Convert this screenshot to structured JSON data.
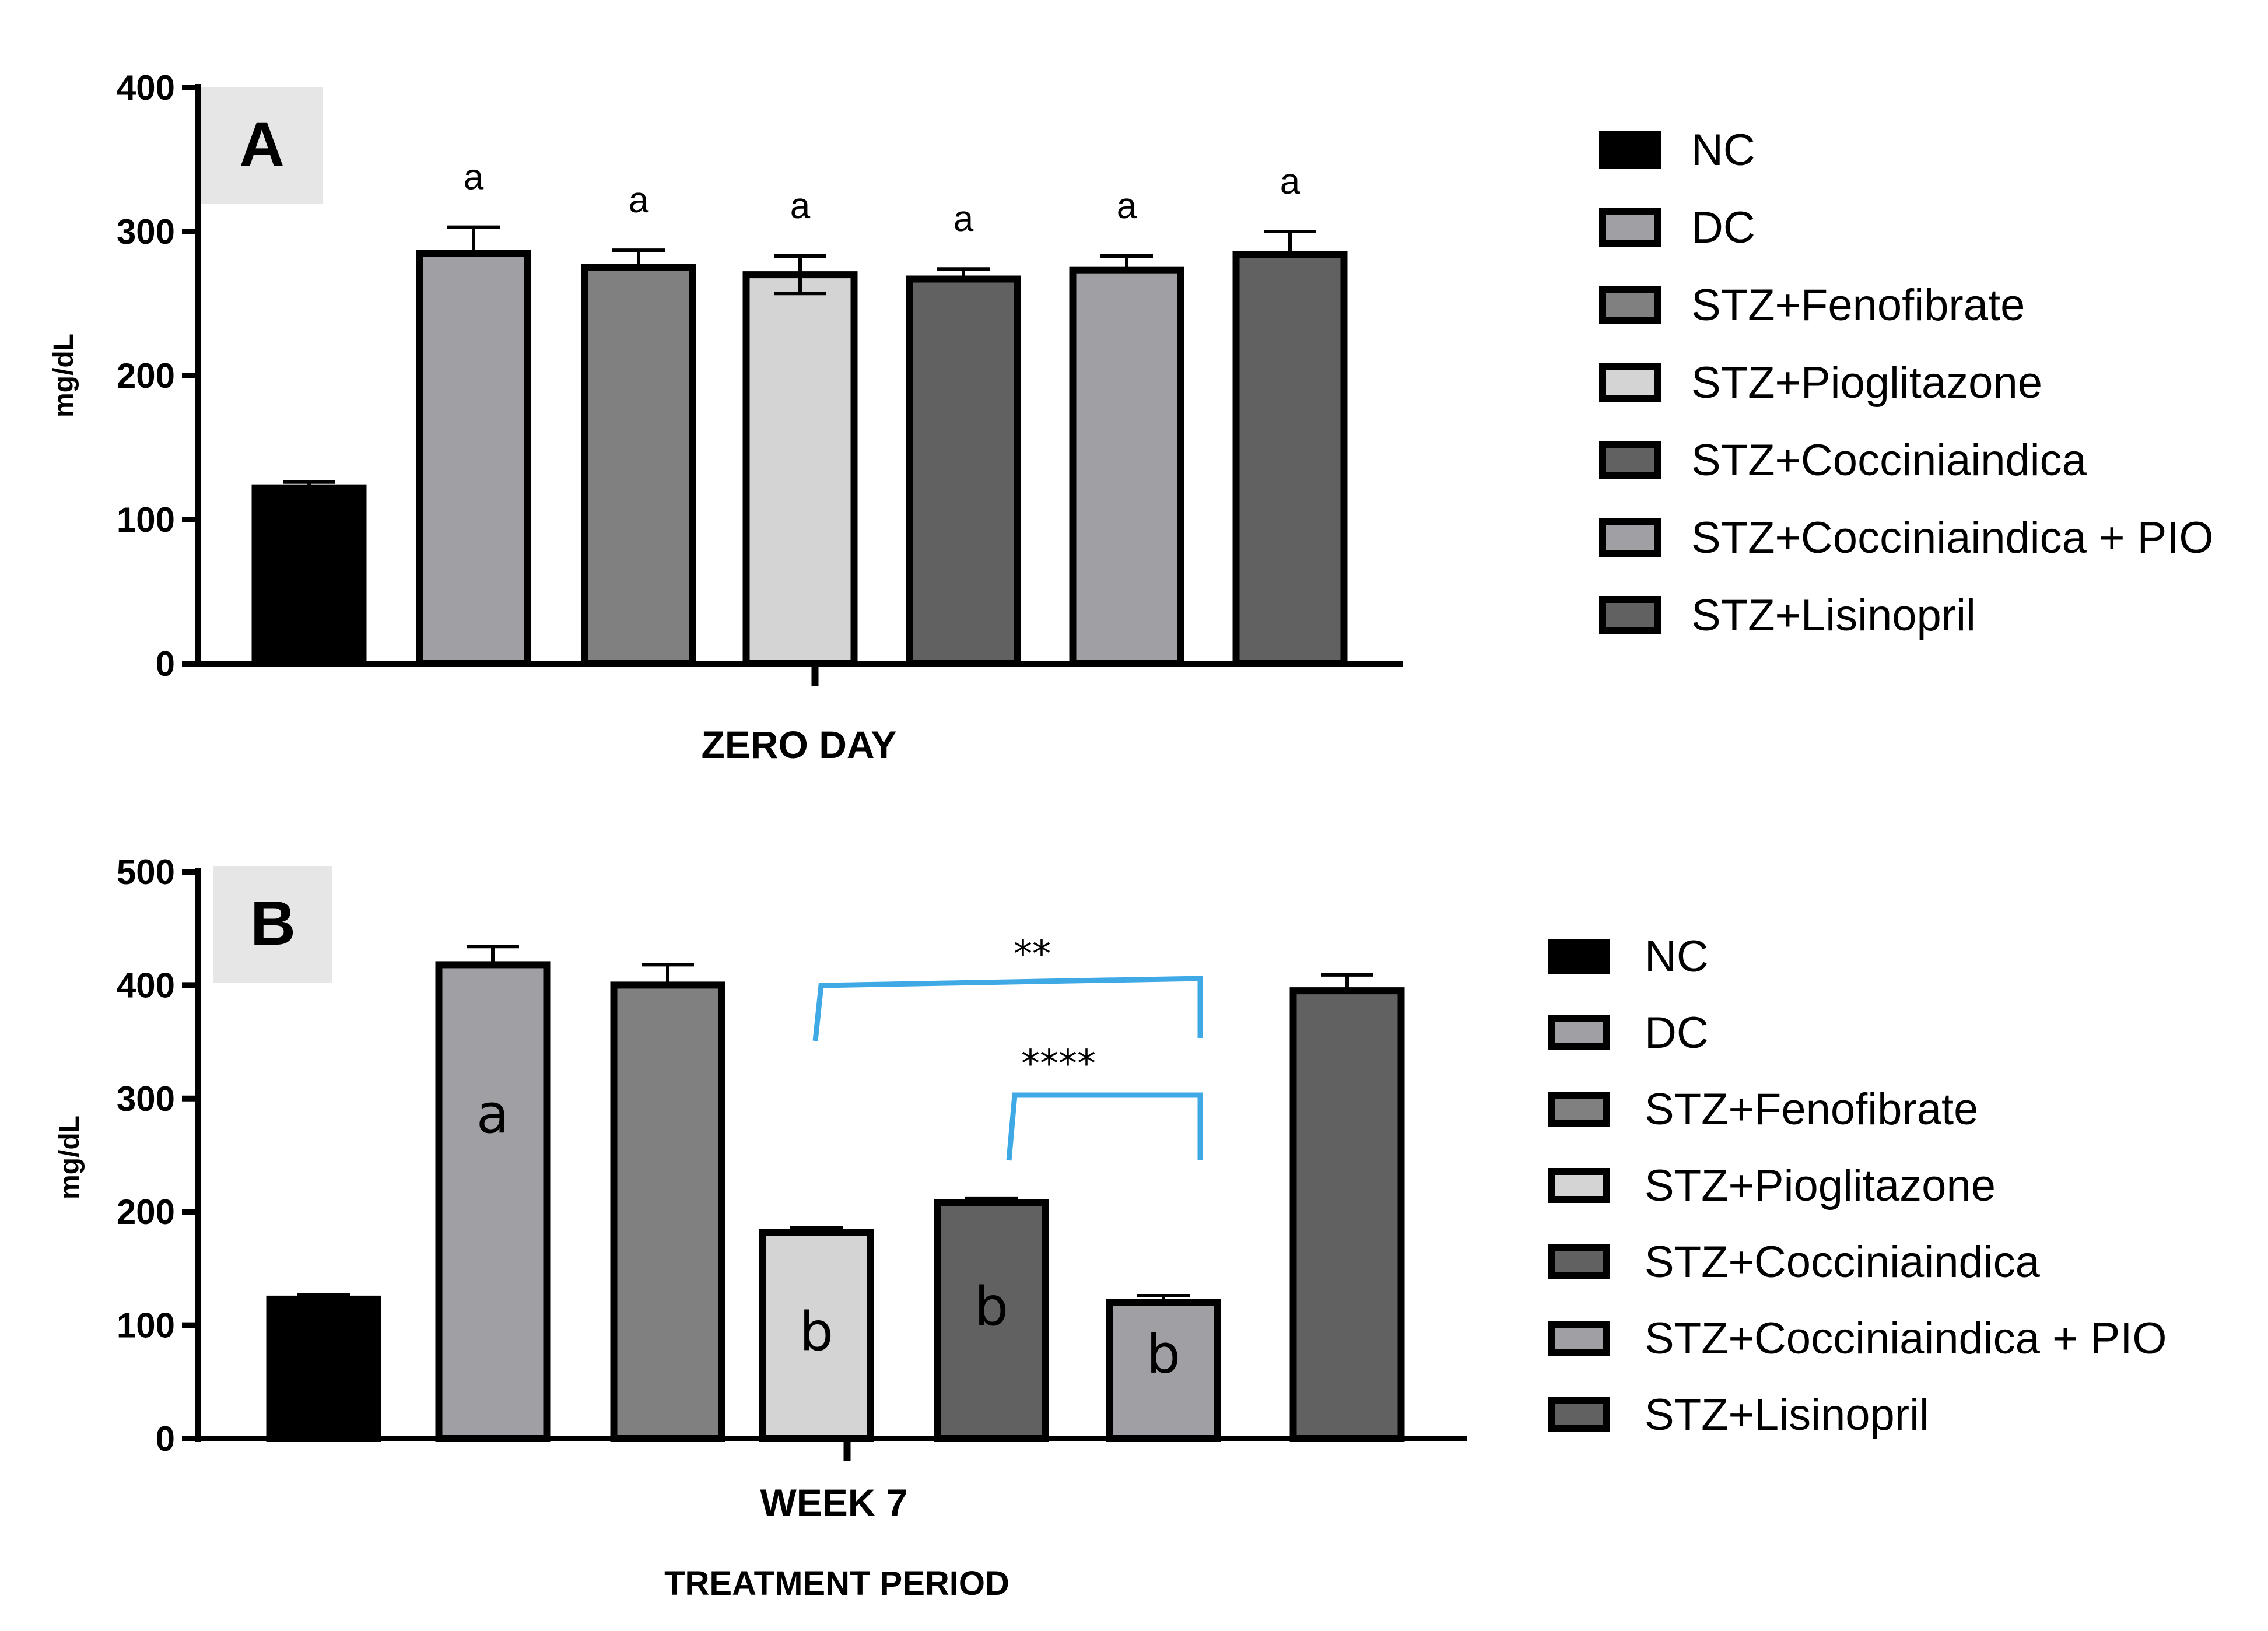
{
  "chart_data": [
    {
      "type": "bar",
      "panel_label": "A",
      "title": "",
      "xlabel": "ZERO DAY",
      "ylabel": "mg/dL",
      "ylim": [
        0,
        400
      ],
      "yticks": [
        "0",
        "100",
        "200",
        "300",
        "400"
      ],
      "categories": [
        "NC",
        "DC",
        "STZ+Fenofibrate",
        "STZ+Pioglitazone",
        "STZ+Cocciniaindica",
        "STZ+Cocciniaindica + PIO",
        "STZ+Lisinopril"
      ],
      "values": [
        122,
        285,
        275,
        270,
        267,
        273,
        284
      ],
      "errors": [
        4,
        18,
        12,
        13,
        7,
        10,
        16
      ],
      "error_both": [
        false,
        false,
        false,
        true,
        false,
        false,
        false
      ],
      "colors": [
        "#000000",
        "#a0a0a4",
        "#808080",
        "#d4d4d4",
        "#616161",
        "#a0a0a4",
        "#616161"
      ],
      "bar_labels": [
        "",
        "a",
        "a",
        "a",
        "a",
        "a",
        "a"
      ],
      "legend_position": "right",
      "legend": [
        "NC",
        "DC",
        "STZ+Fenofibrate",
        "STZ+Pioglitazone",
        "STZ+Cocciniaindica",
        "STZ+Cocciniaindica + PIO",
        "STZ+Lisinopril"
      ]
    },
    {
      "type": "bar",
      "panel_label": "B",
      "title": "",
      "xlabel": "WEEK 7",
      "ylabel": "mg/dL",
      "subtitle": "TREATMENT PERIOD",
      "ylim": [
        0,
        500
      ],
      "yticks": [
        "0",
        "100",
        "200",
        "300",
        "400",
        "500"
      ],
      "categories": [
        "NC",
        "DC",
        "STZ+Fenofibrate",
        "STZ+Pioglitazone",
        "STZ+Cocciniaindica",
        "STZ+Cocciniaindica + PIO",
        "STZ+Lisinopril"
      ],
      "values": [
        123,
        418,
        400,
        182,
        208,
        120,
        395
      ],
      "errors": [
        4,
        16,
        18,
        4,
        4,
        6,
        14
      ],
      "error_both": [
        false,
        false,
        false,
        false,
        false,
        false,
        false
      ],
      "colors": [
        "#000000",
        "#a0a0a4",
        "#808080",
        "#d4d4d4",
        "#616161",
        "#a0a0a4",
        "#616161"
      ],
      "bar_labels": [
        "",
        "a",
        "",
        "b",
        "b",
        "b",
        ""
      ],
      "significance": [
        {
          "from": 3,
          "to": 5,
          "label": "**"
        },
        {
          "from": 4,
          "to": 5,
          "label": "****"
        }
      ],
      "legend_position": "right",
      "legend": [
        "NC",
        "DC",
        "STZ+Fenofibrate",
        "STZ+Pioglitazone",
        "STZ+Cocciniaindica",
        "STZ+Cocciniaindica + PIO",
        "STZ+Lisinopril"
      ]
    }
  ],
  "colors": {
    "bracket": "#3fa9e6",
    "panel_label_bg": "#e6e6e6"
  }
}
